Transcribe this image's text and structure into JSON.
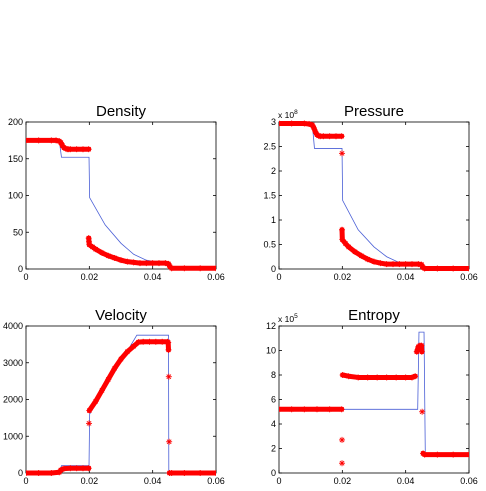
{
  "chart_data": [
    {
      "type": "line",
      "title": "Density",
      "xlim": [
        0,
        0.06
      ],
      "ylim": [
        0,
        200
      ],
      "xticks": [
        0,
        0.02,
        0.04,
        0.06
      ],
      "xtick_labels": [
        "0",
        "0.02",
        "0.04",
        "0.06"
      ],
      "yticks": [
        0,
        50,
        100,
        150,
        200
      ],
      "ytick_labels": [
        "0",
        "50",
        "100",
        "150",
        "200"
      ],
      "exponent": null,
      "series": [
        {
          "style": "line",
          "color": "#4a5fd6",
          "x": [
            0,
            0.0105,
            0.0112,
            0.0198,
            0.0199,
            0.0201,
            0.025,
            0.03,
            0.034,
            0.038,
            0.042,
            0.045,
            0.0451,
            0.06
          ],
          "y": [
            175,
            175,
            152,
            152,
            152,
            97,
            60,
            35,
            20,
            12,
            9,
            8,
            1,
            1
          ]
        },
        {
          "style": "marker",
          "marker": "*",
          "color": "#ff0000",
          "x": [
            0,
            0.004,
            0.008,
            0.0095,
            0.0105,
            0.011,
            0.0115,
            0.012,
            0.0125,
            0.013,
            0.0135,
            0.014,
            0.016,
            0.018,
            0.0198,
            0.0198,
            0.0199,
            0.02,
            0.021,
            0.022,
            0.024,
            0.026,
            0.028,
            0.03,
            0.032,
            0.034,
            0.036,
            0.038,
            0.04,
            0.042,
            0.044,
            0.045,
            0.0452,
            0.0455,
            0.046,
            0.05,
            0.055,
            0.06
          ],
          "y": [
            175,
            175,
            175,
            175,
            174,
            172,
            168,
            165,
            164,
            163,
            163,
            163,
            163,
            163,
            163,
            42,
            37,
            33,
            30,
            27,
            22,
            18,
            15,
            12,
            10,
            9,
            8,
            8,
            8,
            8,
            8,
            7,
            5,
            3,
            1,
            1,
            1,
            1
          ]
        }
      ]
    },
    {
      "type": "line",
      "title": "Pressure",
      "xlim": [
        0,
        0.06
      ],
      "ylim": [
        0,
        3
      ],
      "xticks": [
        0,
        0.02,
        0.04,
        0.06
      ],
      "xtick_labels": [
        "0",
        "0.02",
        "0.04",
        "0.06"
      ],
      "yticks": [
        0,
        0.5,
        1,
        1.5,
        2,
        2.5,
        3
      ],
      "ytick_labels": [
        "0",
        "0.5",
        "1",
        "1.5",
        "2",
        "2.5",
        "3"
      ],
      "exponent": {
        "base": "x 10",
        "power": "8"
      },
      "series": [
        {
          "style": "line",
          "color": "#4a5fd6",
          "x": [
            0,
            0.0105,
            0.0112,
            0.0198,
            0.0199,
            0.0201,
            0.025,
            0.03,
            0.034,
            0.038,
            0.042,
            0.045,
            0.0451,
            0.06
          ],
          "y": [
            2.97,
            2.97,
            2.46,
            2.46,
            2.46,
            1.4,
            0.8,
            0.45,
            0.25,
            0.13,
            0.11,
            0.1,
            0.01,
            0.01
          ]
        },
        {
          "style": "marker",
          "marker": "*",
          "color": "#ff0000",
          "x": [
            0,
            0.004,
            0.008,
            0.0095,
            0.0105,
            0.011,
            0.0115,
            0.012,
            0.0125,
            0.013,
            0.014,
            0.016,
            0.018,
            0.0198,
            0.0199,
            0.0199,
            0.02,
            0.021,
            0.022,
            0.024,
            0.026,
            0.028,
            0.03,
            0.032,
            0.034,
            0.036,
            0.038,
            0.04,
            0.042,
            0.044,
            0.045,
            0.0452,
            0.0455,
            0.046,
            0.05,
            0.055,
            0.06
          ],
          "y": [
            2.97,
            2.97,
            2.97,
            2.96,
            2.94,
            2.88,
            2.8,
            2.74,
            2.72,
            2.71,
            2.71,
            2.71,
            2.71,
            2.71,
            2.36,
            0.8,
            0.6,
            0.52,
            0.45,
            0.35,
            0.27,
            0.2,
            0.15,
            0.12,
            0.1,
            0.1,
            0.1,
            0.1,
            0.1,
            0.1,
            0.09,
            0.06,
            0.03,
            0.01,
            0.01,
            0.01,
            0.01
          ]
        }
      ]
    },
    {
      "type": "line",
      "title": "Velocity",
      "xlim": [
        0,
        0.06
      ],
      "ylim": [
        0,
        4000
      ],
      "xticks": [
        0,
        0.02,
        0.04,
        0.06
      ],
      "xtick_labels": [
        "0",
        "0.02",
        "0.04",
        "0.06"
      ],
      "yticks": [
        0,
        1000,
        2000,
        3000,
        4000
      ],
      "ytick_labels": [
        "0",
        "1000",
        "2000",
        "3000",
        "4000"
      ],
      "exponent": null,
      "series": [
        {
          "style": "line",
          "color": "#4a5fd6",
          "x": [
            0,
            0.0105,
            0.0112,
            0.0198,
            0.0199,
            0.0201,
            0.035,
            0.0449,
            0.045,
            0.0451,
            0.06
          ],
          "y": [
            0,
            0,
            200,
            200,
            200,
            1600,
            3750,
            3750,
            3750,
            0,
            0
          ]
        },
        {
          "style": "marker",
          "marker": "*",
          "color": "#ff0000",
          "x": [
            0,
            0.004,
            0.008,
            0.0105,
            0.011,
            0.012,
            0.014,
            0.016,
            0.018,
            0.0198,
            0.0199,
            0.02,
            0.022,
            0.024,
            0.026,
            0.028,
            0.03,
            0.032,
            0.034,
            0.0355,
            0.037,
            0.039,
            0.041,
            0.043,
            0.0447,
            0.0449,
            0.045,
            0.0451,
            0.0452,
            0.0453,
            0.046,
            0.05,
            0.055,
            0.06
          ],
          "y": [
            0,
            0,
            0,
            20,
            80,
            120,
            130,
            130,
            130,
            130,
            1350,
            1700,
            1950,
            2250,
            2550,
            2850,
            3100,
            3300,
            3450,
            3560,
            3570,
            3570,
            3570,
            3570,
            3570,
            3550,
            3350,
            2620,
            850,
            0,
            0,
            0,
            0,
            0
          ]
        }
      ]
    },
    {
      "type": "line",
      "title": "Entropy",
      "xlim": [
        0,
        0.06
      ],
      "ylim": [
        0,
        12
      ],
      "xticks": [
        0,
        0.02,
        0.04,
        0.06
      ],
      "xtick_labels": [
        "0",
        "0.02",
        "0.04",
        "0.06"
      ],
      "yticks": [
        0,
        2,
        4,
        6,
        8,
        10,
        12
      ],
      "ytick_labels": [
        "0",
        "2",
        "4",
        "6",
        "8",
        "10",
        "12"
      ],
      "exponent": {
        "base": "x 10",
        "power": "5"
      },
      "series": [
        {
          "style": "line",
          "color": "#4a5fd6",
          "x": [
            0,
            0.0198,
            0.0202,
            0.0438,
            0.0442,
            0.0458,
            0.0462,
            0.06
          ],
          "y": [
            5.2,
            5.2,
            5.2,
            5.2,
            11.5,
            11.5,
            1.5,
            1.5
          ]
        },
        {
          "style": "marker",
          "marker": "*",
          "color": "#ff0000",
          "x": [
            0,
            0.004,
            0.008,
            0.012,
            0.016,
            0.0198,
            0.0199,
            0.0199,
            0.0201,
            0.022,
            0.025,
            0.028,
            0.031,
            0.034,
            0.037,
            0.04,
            0.042,
            0.043,
            0.0435,
            0.044,
            0.0445,
            0.045,
            0.0451,
            0.0452,
            0.0455,
            0.046,
            0.05,
            0.055,
            0.06
          ],
          "y": [
            5.2,
            5.2,
            5.2,
            5.2,
            5.2,
            5.2,
            2.7,
            0.8,
            8.0,
            7.9,
            7.8,
            7.8,
            7.8,
            7.8,
            7.8,
            7.8,
            7.8,
            7.9,
            9.9,
            10.3,
            10.4,
            10.4,
            9.9,
            5.0,
            1.6,
            1.5,
            1.5,
            1.5,
            1.5
          ]
        }
      ]
    }
  ]
}
